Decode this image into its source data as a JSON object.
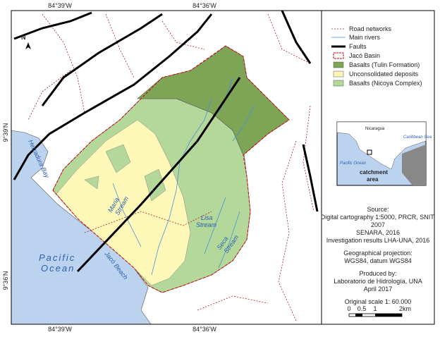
{
  "map": {
    "graticule": {
      "top": [
        "84°39'W",
        "84°36'W"
      ],
      "bottom": [
        "84°39'W",
        "84°36'W"
      ],
      "left": [
        "9°39'N",
        "9°36'N"
      ]
    },
    "north": "N",
    "labels": {
      "bay": "Herradura Bay",
      "ocean": [
        "Pacific",
        "Ocean"
      ],
      "beach": "Jacó Beach",
      "maria": [
        "Maria",
        "Stream"
      ],
      "lisa": [
        "Lisa",
        "Stream"
      ],
      "seca": [
        "Seca",
        "Stream"
      ]
    }
  },
  "legend": {
    "items": [
      "Road networks",
      "Main rivers",
      "Faults",
      "Jacó Basin",
      "Basalts (Tulin Formation)",
      "Unconsolidated deposits",
      "Basalts (Nicoya Complex)"
    ]
  },
  "inset": {
    "labels": [
      "Nicaragua",
      "Caribbean Sea",
      "Pacific Ocean"
    ],
    "marker": [
      "catchment",
      "area"
    ]
  },
  "notes": [
    "Source:",
    "Digital cartography 1:5000, PRCR, SNIT,",
    "2007",
    "SENARA, 2016",
    "Investigation results LHA-UNA, 2016",
    "Geographical projection:",
    "WGS84, datum WGS84",
    "Produced by:",
    "Laboratorio de Hidrología, UNA",
    "April 2017",
    "Original scale 1: 60.000"
  ],
  "scale_bar": {
    "ticks": [
      "0",
      "0.5",
      "1",
      "2km"
    ]
  }
}
